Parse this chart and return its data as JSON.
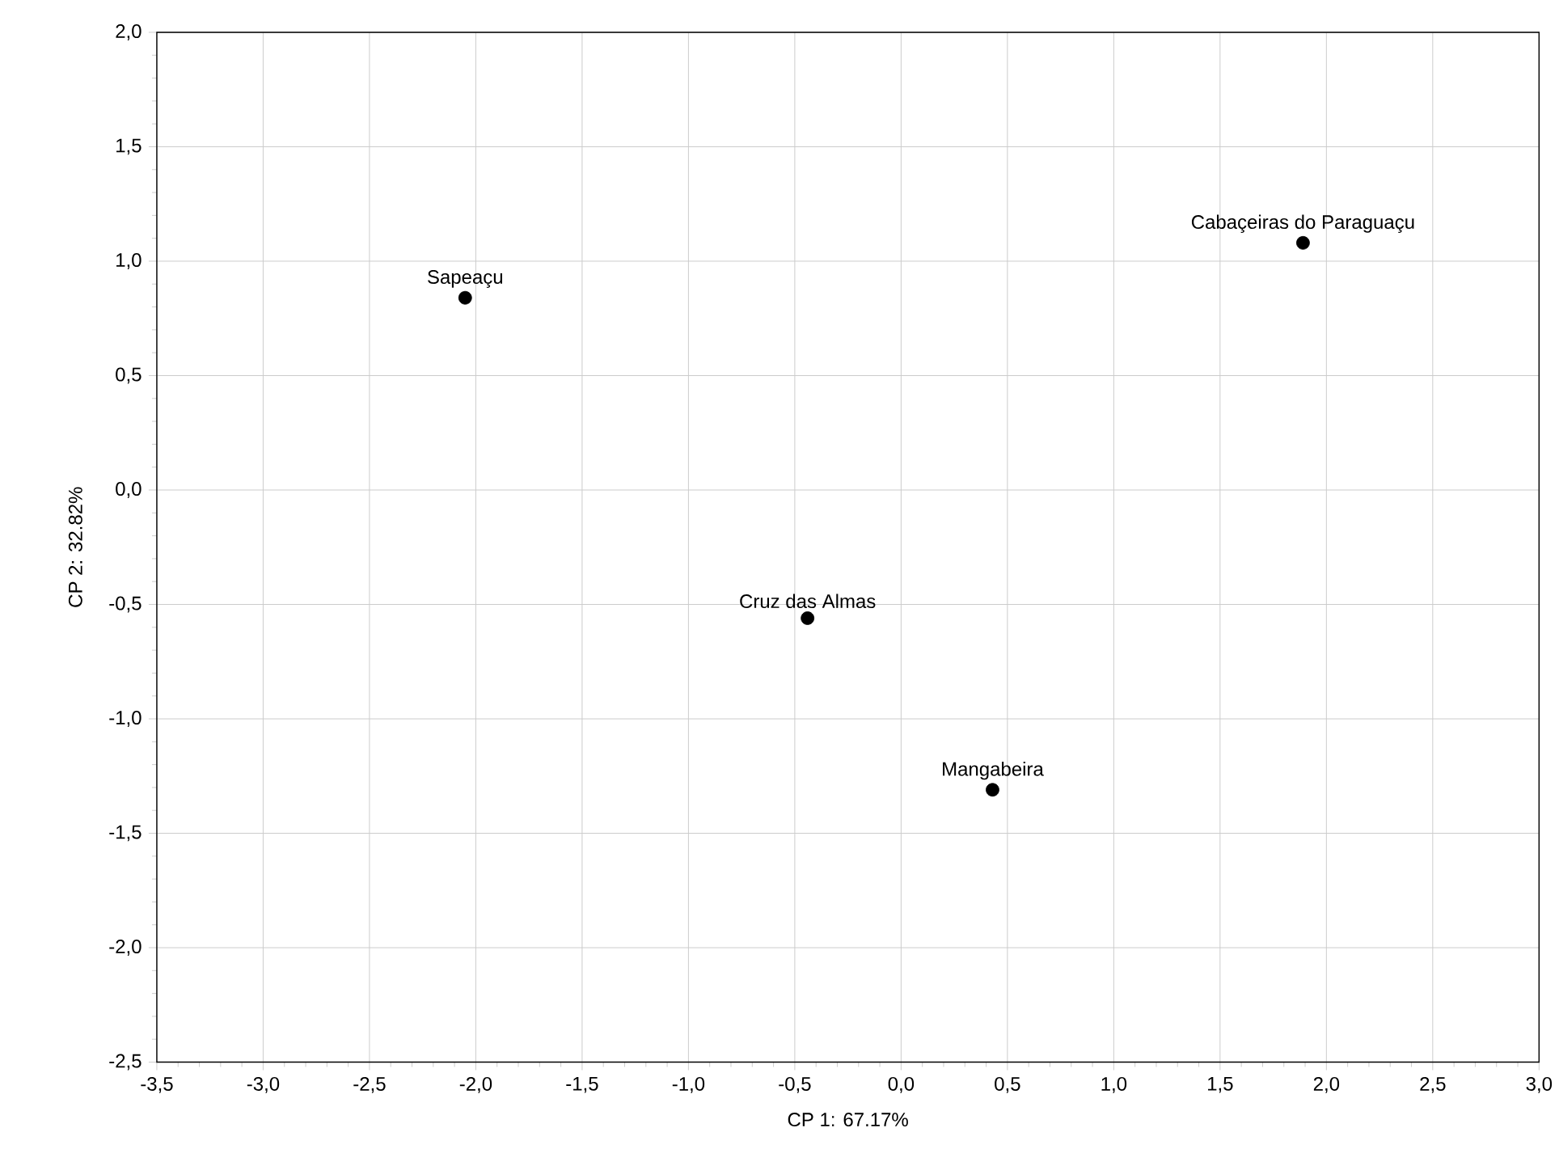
{
  "chart_data": {
    "type": "scatter",
    "xlabel": "CP 1: 67.17%",
    "ylabel": "CP 2: 32.82%",
    "x": [
      -2.05,
      1.89,
      -0.44,
      0.43
    ],
    "series": [
      {
        "color": "#000000",
        "values": [
          0.84,
          1.08,
          -0.56,
          -1.31
        ]
      }
    ],
    "marker": "circle",
    "grid": true,
    "xlim": [
      -3.5,
      3.0
    ],
    "ylim": [
      -2.5,
      2.0
    ],
    "xticks": [
      {
        "value": -3.5,
        "label": "-3,5"
      },
      {
        "value": -3.0,
        "label": "-3,0"
      },
      {
        "value": -2.5,
        "label": "-2,5"
      },
      {
        "value": -2.0,
        "label": "-2,0"
      },
      {
        "value": -1.5,
        "label": "-1,5"
      },
      {
        "value": -1.0,
        "label": "-1,0"
      },
      {
        "value": -0.5,
        "label": "-0,5"
      },
      {
        "value": 0.0,
        "label": "0,0"
      },
      {
        "value": 0.5,
        "label": "0,5"
      },
      {
        "value": 1.0,
        "label": "1,0"
      },
      {
        "value": 1.5,
        "label": "1,5"
      },
      {
        "value": 2.0,
        "label": "2,0"
      },
      {
        "value": 2.5,
        "label": "2,5"
      },
      {
        "value": 3.0,
        "label": "3,0"
      }
    ],
    "yticks": [
      {
        "value": -2.5,
        "label": "-2,5"
      },
      {
        "value": -2.0,
        "label": "-2,0"
      },
      {
        "value": -1.5,
        "label": "-1,5"
      },
      {
        "value": -1.0,
        "label": "-1,0"
      },
      {
        "value": -0.5,
        "label": "-0,5"
      },
      {
        "value": 0.0,
        "label": "0,0"
      },
      {
        "value": 0.5,
        "label": "0,5"
      },
      {
        "value": 1.0,
        "label": "1,0"
      },
      {
        "value": 1.5,
        "label": "1,5"
      },
      {
        "value": 2.0,
        "label": "2,0"
      }
    ],
    "annotations": [
      {
        "text": "Sapeaçu",
        "x": -2.05,
        "y": 0.84
      },
      {
        "text": "Cabaçeiras do Paraguaçu",
        "x": 1.89,
        "y": 1.08
      },
      {
        "text": "Cruz das Almas",
        "x": -0.44,
        "y": -0.56
      },
      {
        "text": "Mangabeira",
        "x": 0.43,
        "y": -1.31
      }
    ]
  }
}
